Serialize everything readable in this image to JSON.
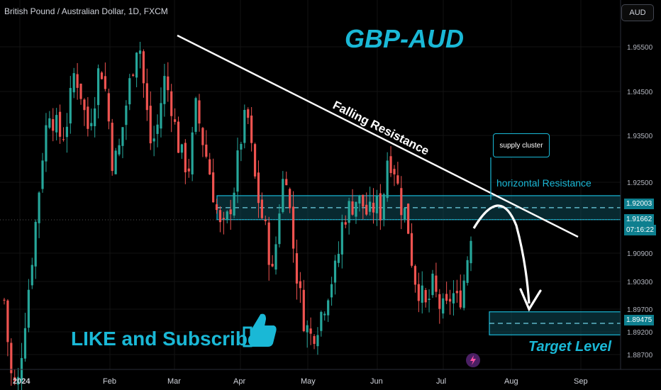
{
  "header": {
    "symbol_line": "British Pound / Australian Dollar, 1D, FXCM",
    "currency": "AUD"
  },
  "annotations": {
    "title": "GBP-AUD",
    "falling_resistance": "Falling Resistance",
    "supply_cluster": "supply cluster",
    "horizontal_resistance": "horizontal Resistance",
    "like": "LIKE and Subscribe",
    "target_level": "Target Level"
  },
  "colors": {
    "accent": "#1ab8d6",
    "up": "#26a69a",
    "down": "#ef5350",
    "zone_fill": "#0f4a57"
  },
  "icons": {
    "thumb": "thumbs-up-icon",
    "logo": "lightning-logo-icon"
  },
  "chart_data": {
    "type": "candlestick",
    "y_ticks": [
      "1.95500",
      "1.94500",
      "1.93500",
      "1.92500",
      "1.90900",
      "1.90300",
      "1.89700",
      "1.89200",
      "1.88700"
    ],
    "x_ticks": [
      "2024",
      "Feb",
      "Mar",
      "Apr",
      "May",
      "Jun",
      "Jul",
      "Aug",
      "Sep"
    ],
    "price_labels": {
      "resistance": "1.92003",
      "current": "1.91662",
      "countdown": "07:16:22",
      "target": "1.89475"
    },
    "resistance_zone": [
      1.9175,
      1.9227
    ],
    "target_zone": [
      1.8925,
      1.8975
    ],
    "trendline": {
      "from": [
        "2024-02-28",
        1.9585
      ],
      "to": [
        "2024-08-10",
        1.9114
      ]
    },
    "projection": {
      "from": 1.9165,
      "peak": 1.92,
      "to": 1.8965
    },
    "close_path": [
      1.9,
      1.884,
      1.88,
      1.893,
      1.905,
      1.918,
      1.932,
      1.942,
      1.938,
      1.935,
      1.94,
      1.95,
      1.945,
      1.937,
      1.943,
      1.952,
      1.944,
      1.929,
      1.933,
      1.942,
      1.95,
      1.958,
      1.944,
      1.933,
      1.938,
      1.948,
      1.944,
      1.935,
      1.93,
      1.929,
      1.942,
      1.935,
      1.929,
      1.921,
      1.914,
      1.918,
      1.925,
      1.935,
      1.941,
      1.928,
      1.92,
      1.914,
      1.905,
      1.92,
      1.93,
      1.914,
      1.903,
      1.895,
      1.892,
      1.895,
      1.899,
      1.904,
      1.907,
      1.918,
      1.92,
      1.922,
      1.921,
      1.918,
      1.921,
      1.919,
      1.932,
      1.929,
      1.921,
      1.918,
      1.906,
      1.902,
      1.898,
      1.903,
      1.899,
      1.897,
      1.902,
      1.899,
      1.905,
      1.915
    ]
  }
}
